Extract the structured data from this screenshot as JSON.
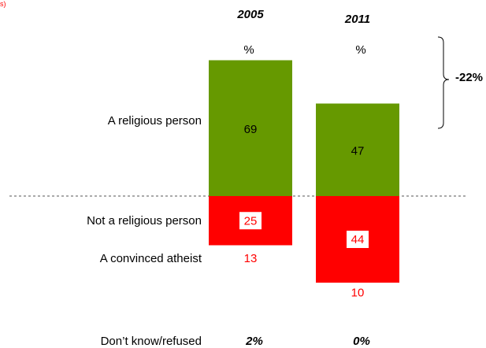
{
  "corner_text": "s)",
  "row_labels": {
    "religious": "A religious person",
    "not_religious": "Not a religious person",
    "atheist": "A convinced atheist",
    "dont_know": "Don’t know/refused"
  },
  "percent_sign": "%",
  "difference_label": "-22%",
  "colors": {
    "religious": "#669900",
    "not_religious": "#ff0000",
    "atheist_text": "#ff0000"
  },
  "chart_data": {
    "type": "bar",
    "categories": [
      "2005",
      "2011"
    ],
    "series": [
      {
        "name": "A religious person",
        "values": [
          69,
          47
        ]
      },
      {
        "name": "Not a religious person",
        "values": [
          25,
          44
        ]
      },
      {
        "name": "A convinced atheist",
        "values": [
          13,
          10
        ]
      }
    ],
    "dont_know": [
      "2%",
      "0%"
    ],
    "annotation": "-22%"
  }
}
